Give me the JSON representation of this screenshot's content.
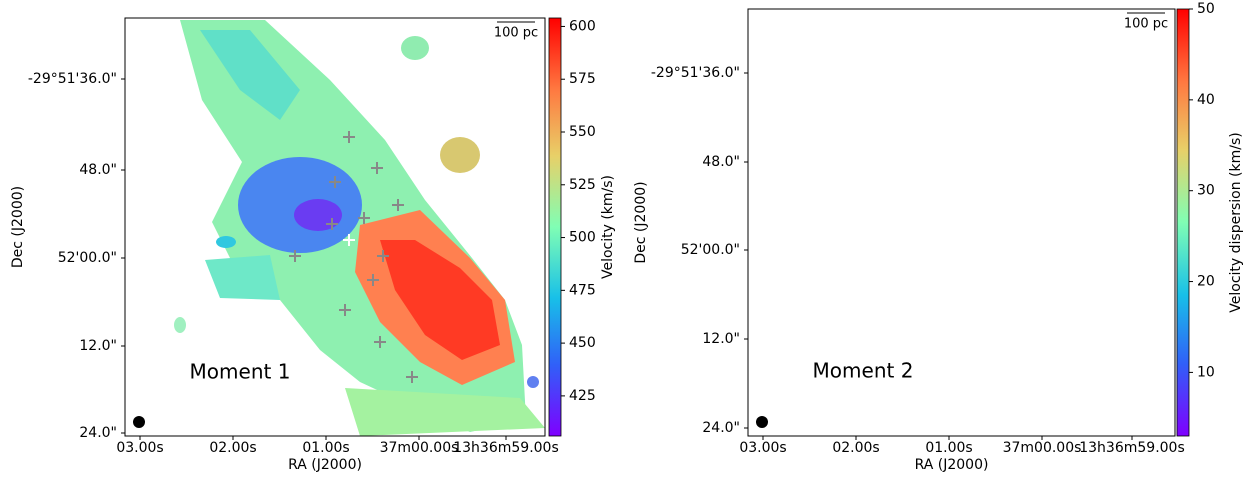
{
  "chart_data": [
    {
      "type": "image",
      "annotation": "Moment 1",
      "xlabel": "RA (J2000)",
      "ylabel": "Dec (J2000)",
      "xtick_labels": [
        "03.00s",
        "02.00s",
        "01.00s",
        "37m00.00s",
        "13h36m59.00s"
      ],
      "ytick_labels": [
        "-29°51'36.0\"",
        "48.0\"",
        "52'00.0\"",
        "12.0\"",
        "24.0\""
      ],
      "scalebar_label": "100 pc",
      "colorbar": {
        "label": "Velocity (km/s)",
        "clim": [
          406,
          604
        ],
        "ticks": [
          425,
          450,
          475,
          500,
          525,
          550,
          575,
          600
        ],
        "colormap": "rainbow"
      }
    },
    {
      "type": "image",
      "annotation": "Moment 2",
      "xlabel": "RA (J2000)",
      "ylabel": "Dec (J2000)",
      "xtick_labels": [
        "03.00s",
        "02.00s",
        "01.00s",
        "37m00.00s",
        "13h36m59.00s"
      ],
      "ytick_labels": [
        "-29°51'36.0\"",
        "48.0\"",
        "52'00.0\"",
        "12.0\"",
        "24.0\""
      ],
      "scalebar_label": "100 pc",
      "colorbar": {
        "label": "Velocity dispersion (km/s)",
        "clim": [
          3,
          50
        ],
        "ticks": [
          10,
          20,
          30,
          40,
          50
        ],
        "colormap": "rainbow"
      }
    }
  ]
}
